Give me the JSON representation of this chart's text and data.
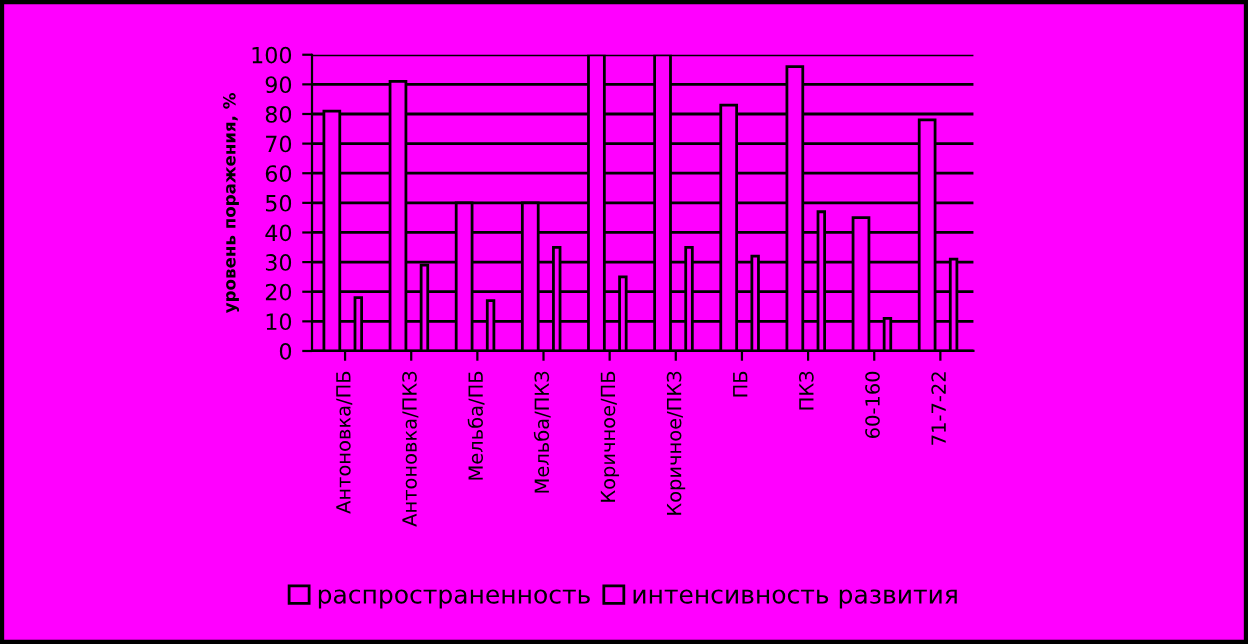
{
  "chart_data": {
    "type": "bar",
    "ylabel": "уровень поражения, %",
    "categories": [
      "Антоновка/ПБ",
      "Антоновка/ПКЗ",
      "Мельба/ПБ",
      "Мельба/ПКЗ",
      "Коричное/ПБ",
      "Коричное/ПКЗ",
      "ПБ",
      "ПКЗ",
      "60-160",
      "71-7-22"
    ],
    "series": [
      {
        "name": "распространенность",
        "color": "#ff00ff",
        "values": [
          81,
          91,
          50,
          50,
          100,
          100,
          83,
          96,
          45,
          78
        ]
      },
      {
        "name": "интенсивность развития",
        "color": "#ff00ff",
        "values": [
          18,
          29,
          17,
          35,
          25,
          35,
          32,
          47,
          11,
          31
        ]
      }
    ],
    "ylim": [
      0,
      100
    ],
    "yticks": [
      0,
      10,
      20,
      30,
      40,
      50,
      60,
      70,
      80,
      90,
      100
    ],
    "grid": "y",
    "legend": "bottom"
  }
}
